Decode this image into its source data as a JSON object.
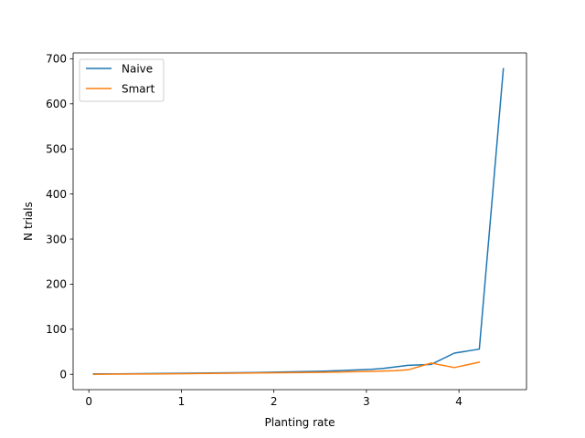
{
  "chart_data": {
    "type": "line",
    "xlabel": "Planting rate",
    "ylabel": "N trials",
    "xlim": [
      -0.17,
      4.73
    ],
    "ylim": [
      -33.95,
      712.95
    ],
    "xticks": [
      "0",
      "1",
      "2",
      "3",
      "4"
    ],
    "yticks": [
      "0",
      "100",
      "200",
      "300",
      "400",
      "500",
      "600",
      "700"
    ],
    "grid": false,
    "legend_position": "top-left",
    "series": [
      {
        "name": "Naive",
        "color": "#1f77b4",
        "x": [
          0.05,
          0.3,
          0.55,
          0.8,
          1.05,
          1.3,
          1.55,
          1.8,
          2.05,
          2.3,
          2.55,
          2.8,
          3.05,
          3.18,
          3.45,
          3.7,
          3.95,
          4.22,
          4.48
        ],
        "y": [
          1,
          1,
          1.5,
          2,
          2.5,
          3,
          3.5,
          4,
          5,
          6,
          7,
          9,
          11,
          13,
          20,
          22,
          47,
          56,
          678
        ]
      },
      {
        "name": "Smart",
        "color": "#ff7f0e",
        "x": [
          0.05,
          0.3,
          0.55,
          0.8,
          1.05,
          1.3,
          1.55,
          1.8,
          2.05,
          2.3,
          2.55,
          2.8,
          3.05,
          3.3,
          3.45,
          3.7,
          3.95,
          4.22
        ],
        "y": [
          0,
          0.5,
          0.8,
          1,
          1.5,
          2,
          2.5,
          3,
          3.5,
          4,
          4.5,
          5.5,
          6.5,
          8,
          10,
          25,
          15,
          27
        ]
      }
    ]
  }
}
